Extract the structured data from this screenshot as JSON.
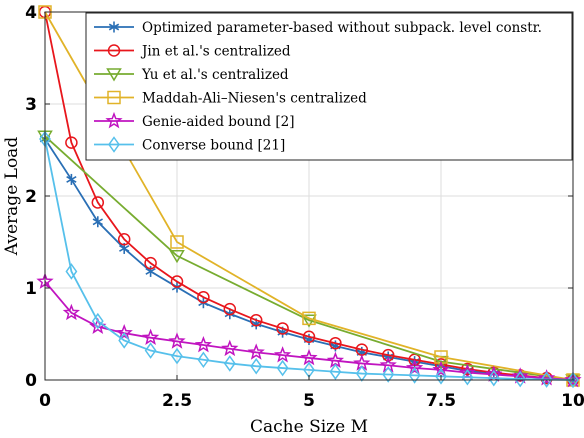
{
  "chart_data": {
    "type": "line",
    "xlabel": "Cache Size M",
    "ylabel": "Average Load",
    "xlim": [
      0,
      10
    ],
    "ylim": [
      0,
      4
    ],
    "xticks": [
      0,
      2.5,
      5,
      7.5,
      10
    ],
    "xtick_labels": [
      "0",
      "2.5",
      "5",
      "7.5",
      "10"
    ],
    "yticks": [
      0,
      1,
      2,
      3,
      4
    ],
    "ytick_labels": [
      "0",
      "1",
      "2",
      "3",
      "4"
    ],
    "grid": true,
    "legend_position": "top-right",
    "series": [
      {
        "name": "Optimized parameter-based without subpack. level constr.",
        "color": "#2a6fb5",
        "marker": "asterisk",
        "x": [
          0,
          0.5,
          1,
          1.5,
          2,
          2.5,
          3,
          3.5,
          4,
          4.5,
          5,
          5.5,
          6,
          6.5,
          7,
          7.5,
          8,
          8.5,
          9,
          9.5,
          10
        ],
        "y": [
          2.62,
          2.18,
          1.72,
          1.43,
          1.18,
          1.01,
          0.84,
          0.72,
          0.61,
          0.52,
          0.44,
          0.37,
          0.3,
          0.25,
          0.2,
          0.15,
          0.1,
          0.07,
          0.04,
          0.02,
          0.0
        ]
      },
      {
        "name": "Jin et al.'s centralized",
        "color": "#e8161c",
        "marker": "circle",
        "x": [
          0,
          0.5,
          1,
          1.5,
          2,
          2.5,
          3,
          3.5,
          4,
          4.5,
          5,
          5.5,
          6,
          6.5,
          7,
          7.5,
          8,
          8.5,
          9,
          9.5,
          10
        ],
        "y": [
          4.0,
          2.58,
          1.93,
          1.53,
          1.27,
          1.07,
          0.9,
          0.77,
          0.65,
          0.56,
          0.47,
          0.4,
          0.33,
          0.27,
          0.22,
          0.17,
          0.12,
          0.08,
          0.05,
          0.02,
          0.0
        ]
      },
      {
        "name": "Yu et al.'s centralized",
        "color": "#77ac30",
        "marker": "triangle-down",
        "x": [
          0,
          2.5,
          5,
          7.5,
          10
        ],
        "y": [
          2.65,
          1.35,
          0.65,
          0.2,
          0.0
        ]
      },
      {
        "name": "Maddah-Ali–Niesen's centralized",
        "color": "#e1b328",
        "marker": "square",
        "x": [
          0,
          2.5,
          5,
          7.5,
          10
        ],
        "y": [
          4.0,
          1.5,
          0.67,
          0.25,
          0.0
        ]
      },
      {
        "name": "Genie-aided bound [2]",
        "color": "#c014c0",
        "marker": "star",
        "x": [
          0,
          0.5,
          1,
          1.5,
          2,
          2.5,
          3,
          3.5,
          4,
          4.5,
          5,
          5.5,
          6,
          6.5,
          7,
          7.5,
          8,
          8.5,
          9,
          9.5,
          10
        ],
        "y": [
          1.07,
          0.73,
          0.58,
          0.51,
          0.46,
          0.42,
          0.38,
          0.34,
          0.3,
          0.27,
          0.24,
          0.21,
          0.18,
          0.16,
          0.13,
          0.11,
          0.08,
          0.06,
          0.04,
          0.02,
          0.0
        ]
      },
      {
        "name": "Converse bound [21]",
        "color": "#56c0eb",
        "marker": "diamond",
        "x": [
          0,
          0.5,
          1,
          1.5,
          2,
          2.5,
          3,
          3.5,
          4,
          4.5,
          5,
          5.5,
          6,
          6.5,
          7,
          7.5,
          8,
          8.5,
          9,
          9.5,
          10
        ],
        "y": [
          2.62,
          1.18,
          0.64,
          0.43,
          0.32,
          0.26,
          0.22,
          0.18,
          0.15,
          0.13,
          0.11,
          0.09,
          0.07,
          0.06,
          0.05,
          0.04,
          0.03,
          0.02,
          0.01,
          0.005,
          0.0
        ]
      }
    ]
  }
}
